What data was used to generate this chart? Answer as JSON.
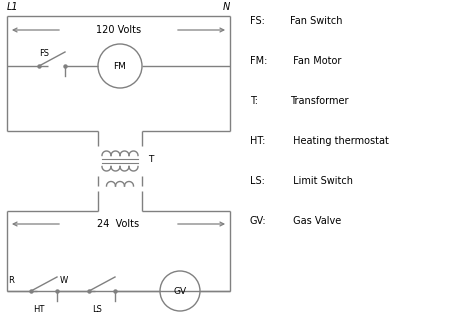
{
  "bg_color": "#ffffff",
  "line_color": "#808080",
  "text_color": "#000000",
  "legend": [
    [
      "FS:",
      "Fan Switch"
    ],
    [
      "FM:",
      " Fan Motor"
    ],
    [
      "T:",
      "Transformer"
    ],
    [
      "HT:",
      " Heating thermostat"
    ],
    [
      "LS:",
      " Limit Switch"
    ],
    [
      "GV:",
      " Gas Valve"
    ]
  ],
  "L1_label": "L1",
  "N_label": "N",
  "volts120": "120 Volts",
  "volts24": "24  Volts",
  "FS_label": "FS",
  "FM_label": "FM",
  "T_label": "T",
  "R_label": "R",
  "W_label": "W",
  "HT_label": "HT",
  "LS_label": "LS",
  "GV_label": "GV"
}
